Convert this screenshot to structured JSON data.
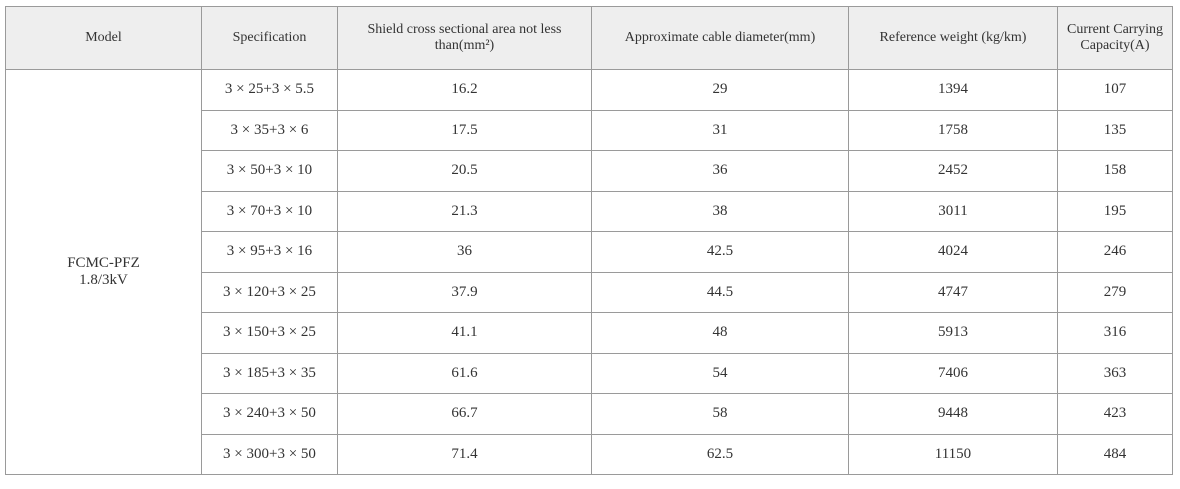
{
  "table": {
    "headers": [
      "Model",
      "Specification",
      "Shield cross sectional area not less than(mm²)",
      "Approximate cable diameter(mm)",
      "Reference weight (kg/km)",
      "Current Carrying Capacity(A)"
    ],
    "model": [
      "FCMC-PFZ",
      "1.8/3kV"
    ],
    "rows": [
      [
        "3 × 25+3 × 5.5",
        16.2,
        29,
        1394,
        107
      ],
      [
        "3 × 35+3 × 6",
        17.5,
        31,
        1758,
        135
      ],
      [
        "3 × 50+3 × 10",
        20.5,
        36,
        2452,
        158
      ],
      [
        "3 × 70+3 × 10",
        21.3,
        38,
        3011,
        195
      ],
      [
        "3 × 95+3 × 16",
        36,
        42.5,
        4024,
        246
      ],
      [
        "3 × 120+3 × 25",
        37.9,
        44.5,
        4747,
        279
      ],
      [
        "3 × 150+3 × 25",
        41.1,
        48,
        5913,
        316
      ],
      [
        "3 × 185+3 × 35",
        61.6,
        54,
        7406,
        363
      ],
      [
        "3 × 240+3 × 50",
        66.7,
        58,
        9448,
        423
      ],
      [
        "3 × 300+3 × 50",
        71.4,
        62.5,
        11150,
        484
      ]
    ]
  }
}
